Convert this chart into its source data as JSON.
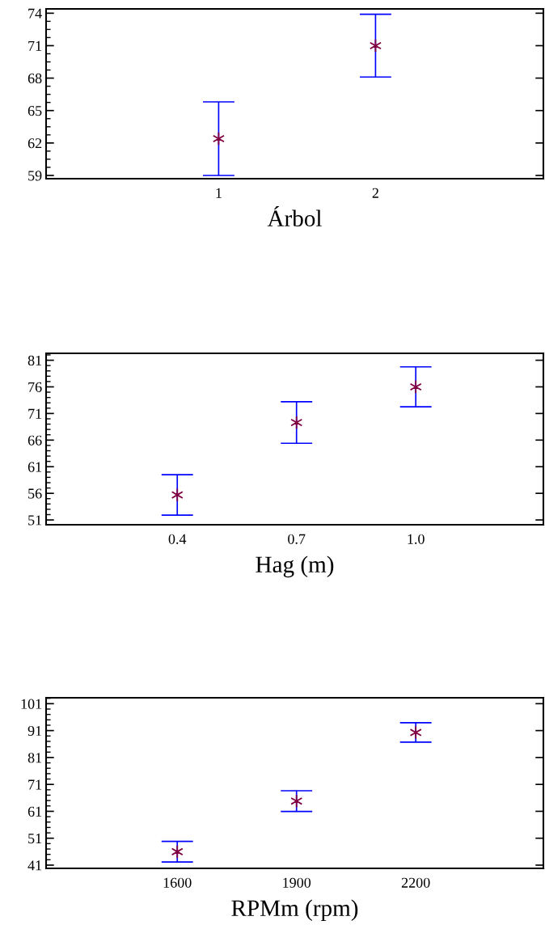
{
  "chart_data": [
    {
      "type": "scatter",
      "xlabel": "Árbol",
      "categories": [
        "1",
        "2"
      ],
      "marker": "cross",
      "grid": false,
      "series": [
        {
          "color": "#800040",
          "values": [
            62.4,
            71.0
          ],
          "errors": [
            3.4,
            2.9
          ]
        }
      ],
      "ylim": [
        58.7,
        74.4
      ],
      "yticks": [
        59,
        62,
        65,
        68,
        71,
        74
      ]
    },
    {
      "type": "scatter",
      "xlabel": "Hag (m)",
      "categories": [
        "0.4",
        "0.7",
        "1.0"
      ],
      "marker": "cross",
      "grid": false,
      "series": [
        {
          "color": "#800040",
          "values": [
            55.7,
            69.3,
            76.0
          ],
          "errors": [
            3.8,
            3.9,
            3.75
          ]
        }
      ],
      "ylim": [
        50.1,
        82.3
      ],
      "yticks": [
        51,
        56,
        61,
        66,
        71,
        76,
        81
      ]
    },
    {
      "type": "scatter",
      "xlabel": "RPMm (rpm)",
      "categories": [
        "1600",
        "1900",
        "2200"
      ],
      "marker": "cross",
      "grid": false,
      "series": [
        {
          "color": "#800040",
          "values": [
            46.0,
            64.8,
            90.3
          ],
          "errors": [
            3.85,
            3.85,
            3.6
          ]
        }
      ],
      "ylim": [
        39.8,
        103.2
      ],
      "yticks": [
        41,
        51,
        61,
        71,
        81,
        91,
        101
      ]
    }
  ]
}
